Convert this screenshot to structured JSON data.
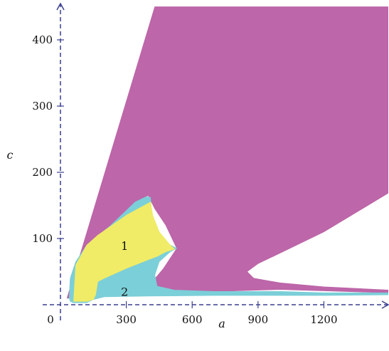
{
  "chart_data": {
    "type": "area",
    "title": "",
    "xlabel": "a",
    "ylabel": "c",
    "origin_label": "0",
    "xlim": [
      -30,
      1500
    ],
    "ylim": [
      -15,
      450
    ],
    "x_ticks": [
      300,
      600,
      900,
      1200
    ],
    "y_ticks": [
      100,
      200,
      300,
      400
    ],
    "grid": false,
    "colors": {
      "magenta_region": "#bd66a9",
      "cyan_region": "#7bcfd8",
      "yellow_region": "#f0ec67",
      "axis": "#3a3f8f"
    },
    "regions": [
      {
        "id": "magenta",
        "color_key": "magenta_region",
        "polygon": [
          [
            30,
            10
          ],
          [
            430,
            450
          ],
          [
            1500,
            450
          ],
          [
            1500,
            170
          ],
          [
            1400,
            150
          ],
          [
            1200,
            110
          ],
          [
            1000,
            78
          ],
          [
            900,
            62
          ],
          [
            850,
            50
          ],
          [
            880,
            40
          ],
          [
            1000,
            33
          ],
          [
            1200,
            27
          ],
          [
            1500,
            22
          ],
          [
            1500,
            18
          ],
          [
            1000,
            23
          ],
          [
            700,
            20
          ],
          [
            550,
            20
          ],
          [
            450,
            21
          ],
          [
            420,
            35
          ],
          [
            470,
            55
          ],
          [
            530,
            85
          ],
          [
            480,
            120
          ],
          [
            430,
            145
          ],
          [
            400,
            165
          ],
          [
            340,
            155
          ],
          [
            230,
            120
          ],
          [
            70,
            65
          ],
          [
            45,
            40
          ],
          [
            40,
            10
          ]
        ]
      },
      {
        "id": "cyan",
        "color_key": "cyan_region",
        "polygon": [
          [
            40,
            10
          ],
          [
            45,
            40
          ],
          [
            70,
            65
          ],
          [
            120,
            90
          ],
          [
            230,
            120
          ],
          [
            340,
            155
          ],
          [
            390,
            163
          ],
          [
            410,
            162
          ],
          [
            415,
            140
          ],
          [
            430,
            110
          ],
          [
            470,
            95
          ],
          [
            530,
            85
          ],
          [
            500,
            80
          ],
          [
            450,
            65
          ],
          [
            430,
            45
          ],
          [
            440,
            28
          ],
          [
            520,
            22
          ],
          [
            700,
            20
          ],
          [
            1000,
            20
          ],
          [
            1200,
            18
          ],
          [
            1500,
            18
          ],
          [
            1500,
            15
          ],
          [
            1200,
            14
          ],
          [
            900,
            14
          ],
          [
            700,
            14
          ],
          [
            400,
            13
          ],
          [
            200,
            12
          ],
          [
            150,
            8
          ],
          [
            120,
            3
          ],
          [
            60,
            3
          ],
          [
            45,
            5
          ]
        ]
      },
      {
        "id": "yellow",
        "color_key": "yellow_region",
        "polygon": [
          [
            60,
            5
          ],
          [
            70,
            60
          ],
          [
            120,
            90
          ],
          [
            170,
            105
          ],
          [
            300,
            135
          ],
          [
            410,
            155
          ],
          [
            420,
            135
          ],
          [
            450,
            110
          ],
          [
            500,
            90
          ],
          [
            520,
            84
          ],
          [
            480,
            80
          ],
          [
            440,
            73
          ],
          [
            400,
            68
          ],
          [
            300,
            55
          ],
          [
            200,
            40
          ],
          [
            170,
            35
          ],
          [
            165,
            25
          ],
          [
            160,
            15
          ],
          [
            150,
            8
          ],
          [
            120,
            5
          ],
          [
            80,
            5
          ]
        ]
      }
    ],
    "annotations": [
      {
        "text": "1",
        "x": 315,
        "y": 88
      },
      {
        "text": "2",
        "x": 315,
        "y": 19
      }
    ]
  }
}
